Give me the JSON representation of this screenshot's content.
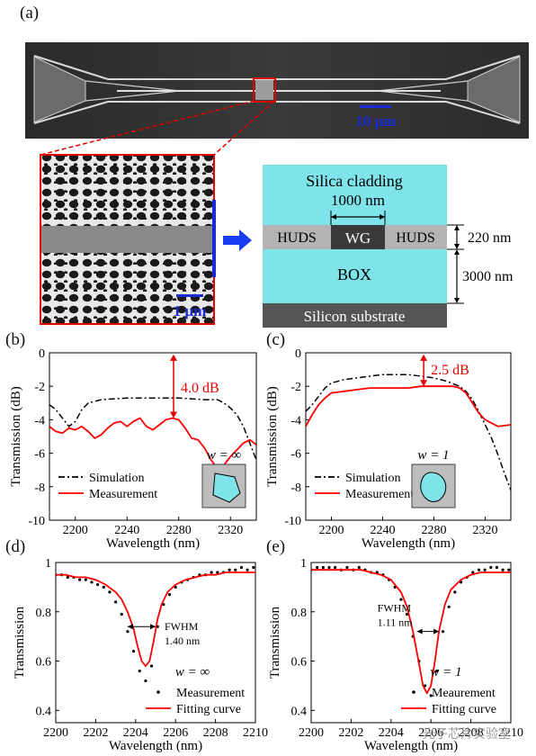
{
  "panels": {
    "a": "(a)",
    "b": "(b)",
    "c": "(c)",
    "d": "(d)",
    "e": "(e)"
  },
  "sem": {
    "scale_main": "10 µm",
    "scale_zoom": "1 µm"
  },
  "cross_section": {
    "cladding": "Silica cladding",
    "width": "1000 nm",
    "huds_left": "HUDS",
    "wg": "WG",
    "huds_right": "HUDS",
    "box": "BOX",
    "substrate": "Silicon substrate",
    "thickness_top": "220 nm",
    "thickness_box": "3000 nm",
    "colors": {
      "cladding": "#7fe3ea",
      "huds": "#b3b3b3",
      "wg": "#3a3a3a",
      "substrate": "#555555"
    }
  },
  "watermark": "光子芯片实验室",
  "chart_data": [
    {
      "id": "b",
      "type": "line",
      "xlabel": "Wavelength (nm)",
      "ylabel": "Transmission (dB)",
      "xlim": [
        2180,
        2340
      ],
      "ylim": [
        -10,
        0
      ],
      "xticks": [
        2200,
        2240,
        2280,
        2320
      ],
      "yticks": [
        0,
        -2,
        -4,
        -6,
        -8,
        -10
      ],
      "annotation": "4.0 dB",
      "annotation_x": 2276,
      "annotation_range": [
        -0.1,
        -3.9
      ],
      "inset_label": "w = ∞",
      "legend": [
        "Simulation",
        "Measurement"
      ],
      "series": [
        {
          "name": "Simulation",
          "style": "dashdot",
          "color": "#000000",
          "x": [
            2180,
            2185,
            2190,
            2195,
            2200,
            2205,
            2210,
            2220,
            2240,
            2260,
            2280,
            2300,
            2310,
            2315,
            2320,
            2325,
            2330,
            2335,
            2340
          ],
          "y": [
            -3.1,
            -3.4,
            -3.9,
            -4.4,
            -4.1,
            -3.4,
            -3.0,
            -2.8,
            -2.7,
            -2.7,
            -2.7,
            -2.8,
            -2.8,
            -3.0,
            -3.3,
            -3.7,
            -4.4,
            -5.4,
            -6.4
          ]
        },
        {
          "name": "Measurement",
          "style": "solid",
          "color": "#ff0000",
          "x": [
            2180,
            2185,
            2190,
            2195,
            2200,
            2205,
            2210,
            2215,
            2220,
            2225,
            2230,
            2235,
            2240,
            2245,
            2250,
            2255,
            2260,
            2265,
            2270,
            2275,
            2280,
            2285,
            2290,
            2295,
            2300,
            2305,
            2310,
            2315,
            2320,
            2325,
            2330,
            2335,
            2340
          ],
          "y": [
            -4.4,
            -4.7,
            -4.8,
            -4.5,
            -4.6,
            -4.4,
            -4.7,
            -5.1,
            -4.9,
            -4.5,
            -4.2,
            -4.1,
            -4.4,
            -4.1,
            -3.9,
            -4.4,
            -4.6,
            -4.3,
            -4.0,
            -3.9,
            -4.0,
            -4.5,
            -5.1,
            -5.2,
            -5.7,
            -6.4,
            -6.9,
            -6.7,
            -6.2,
            -5.8,
            -5.4,
            -5.2,
            -5.5
          ]
        }
      ]
    },
    {
      "id": "c",
      "type": "line",
      "xlabel": "Wavelength (nm)",
      "ylabel": "Transmission (dB)",
      "xlim": [
        2180,
        2340
      ],
      "ylim": [
        -10,
        0
      ],
      "xticks": [
        2200,
        2240,
        2280,
        2320
      ],
      "yticks": [
        0,
        -2,
        -4,
        -6,
        -8,
        -10
      ],
      "annotation": "2.5 dB",
      "annotation_x": 2272,
      "annotation_range": [
        -0.1,
        -2.0
      ],
      "inset_label": "w = 1",
      "legend": [
        "Simulation",
        "Measurement"
      ],
      "series": [
        {
          "name": "Simulation",
          "style": "dashdot",
          "color": "#000000",
          "x": [
            2180,
            2185,
            2190,
            2195,
            2200,
            2210,
            2220,
            2230,
            2240,
            2250,
            2260,
            2270,
            2280,
            2290,
            2300,
            2305,
            2310,
            2315,
            2320,
            2325,
            2330,
            2335,
            2340
          ],
          "y": [
            -3.5,
            -3.1,
            -2.6,
            -2.1,
            -1.8,
            -1.6,
            -1.5,
            -1.4,
            -1.3,
            -1.3,
            -1.3,
            -1.4,
            -1.5,
            -1.7,
            -2.0,
            -2.3,
            -2.8,
            -3.5,
            -4.3,
            -5.1,
            -6.1,
            -7.2,
            -8.2
          ]
        },
        {
          "name": "Measurement",
          "style": "solid",
          "color": "#ff0000",
          "x": [
            2180,
            2185,
            2190,
            2195,
            2200,
            2210,
            2220,
            2230,
            2240,
            2250,
            2260,
            2270,
            2280,
            2290,
            2295,
            2300,
            2305,
            2310,
            2315,
            2320,
            2330,
            2340
          ],
          "y": [
            -4.4,
            -3.7,
            -3.1,
            -2.7,
            -2.4,
            -2.3,
            -2.2,
            -2.1,
            -2.1,
            -2.1,
            -2.1,
            -2.0,
            -2.0,
            -2.0,
            -2.0,
            -2.1,
            -2.4,
            -3.0,
            -3.6,
            -4.0,
            -4.4,
            -4.3
          ]
        }
      ]
    },
    {
      "id": "d",
      "type": "scatter+line",
      "xlabel": "Wavelength (nm)",
      "ylabel": "Transmission",
      "xlim": [
        2200,
        2210
      ],
      "ylim": [
        0.35,
        1.0
      ],
      "xticks": [
        2200,
        2202,
        2204,
        2206,
        2208,
        2210
      ],
      "xtick_labels": [
        "2200",
        "2202",
        "2204",
        "2206",
        "2208",
        "2210"
      ],
      "yticks": [
        0.4,
        0.6,
        0.8,
        1.0
      ],
      "ytick_labels": [
        "0.4",
        "0.6",
        "0.8",
        "1"
      ],
      "fwhm_label": "FWHM",
      "fwhm_value": "1.40 nm",
      "fwhm_range": [
        2203.6,
        2205.0
      ],
      "fwhm_y": 0.74,
      "inset_label": "w = ∞",
      "legend": [
        "Measurement",
        "Fitting curve"
      ],
      "series": [
        {
          "name": "Measurement",
          "style": "dots",
          "color": "#000000",
          "x": [
            2200.0,
            2200.3,
            2200.6,
            2200.9,
            2201.2,
            2201.5,
            2201.8,
            2202.1,
            2202.4,
            2202.7,
            2203.0,
            2203.3,
            2203.6,
            2203.9,
            2204.2,
            2204.5,
            2204.8,
            2205.1,
            2205.4,
            2205.7,
            2206.0,
            2206.3,
            2206.6,
            2206.9,
            2207.2,
            2207.5,
            2207.8,
            2208.1,
            2208.4,
            2208.7,
            2209.0,
            2209.3,
            2209.6,
            2209.9
          ],
          "y": [
            0.95,
            0.95,
            0.94,
            0.94,
            0.93,
            0.93,
            0.92,
            0.91,
            0.9,
            0.88,
            0.84,
            0.79,
            0.72,
            0.64,
            0.56,
            0.52,
            0.58,
            0.74,
            0.83,
            0.87,
            0.9,
            0.92,
            0.93,
            0.94,
            0.95,
            0.95,
            0.96,
            0.96,
            0.96,
            0.97,
            0.97,
            0.98,
            0.97,
            0.98
          ]
        },
        {
          "name": "Fitting curve",
          "style": "solid",
          "color": "#ff0000",
          "x": [
            2200.0,
            2200.5,
            2201.0,
            2201.5,
            2202.0,
            2202.5,
            2203.0,
            2203.3,
            2203.6,
            2203.9,
            2204.1,
            2204.3,
            2204.5,
            2204.7,
            2204.9,
            2205.1,
            2205.3,
            2205.6,
            2206.0,
            2206.5,
            2207.0,
            2207.5,
            2208.0,
            2208.5,
            2209.0,
            2209.5,
            2210.0
          ],
          "y": [
            0.95,
            0.95,
            0.94,
            0.94,
            0.93,
            0.91,
            0.88,
            0.85,
            0.8,
            0.73,
            0.66,
            0.6,
            0.58,
            0.6,
            0.68,
            0.77,
            0.83,
            0.88,
            0.91,
            0.93,
            0.94,
            0.95,
            0.95,
            0.96,
            0.96,
            0.96,
            0.96
          ]
        }
      ]
    },
    {
      "id": "e",
      "type": "scatter+line",
      "xlabel": "Wavelength (nm)",
      "ylabel": "Transmission",
      "xlim": [
        2200,
        2210
      ],
      "ylim": [
        0.35,
        1.0
      ],
      "xticks": [
        2200,
        2202,
        2204,
        2206,
        2208,
        2210
      ],
      "xtick_labels": [
        "2200",
        "2202",
        "2204",
        "2206",
        "2208",
        "2210"
      ],
      "yticks": [
        0.4,
        0.6,
        0.8,
        1.0
      ],
      "ytick_labels": [
        "0.4",
        "0.6",
        "0.8",
        "1"
      ],
      "fwhm_label": "FWHM",
      "fwhm_value": "1.11 nm",
      "fwhm_range": [
        2205.3,
        2206.4
      ],
      "fwhm_y": 0.72,
      "inset_label": "w = 1",
      "legend": [
        "Meaurement",
        "Fitting curve"
      ],
      "series": [
        {
          "name": "Meaurement",
          "style": "dots",
          "color": "#000000",
          "x": [
            2200.0,
            2200.3,
            2200.6,
            2200.9,
            2201.2,
            2201.5,
            2201.8,
            2202.1,
            2202.4,
            2202.7,
            2203.0,
            2203.3,
            2203.6,
            2203.9,
            2204.2,
            2204.5,
            2204.8,
            2205.1,
            2205.4,
            2205.7,
            2206.0,
            2206.3,
            2206.6,
            2206.9,
            2207.2,
            2207.5,
            2207.8,
            2208.1,
            2208.4,
            2208.7,
            2209.0,
            2209.3,
            2209.6,
            2209.9
          ],
          "y": [
            0.97,
            0.98,
            0.98,
            0.98,
            0.98,
            0.97,
            0.98,
            0.97,
            0.98,
            0.97,
            0.96,
            0.96,
            0.95,
            0.93,
            0.9,
            0.85,
            0.79,
            0.7,
            0.6,
            0.5,
            0.46,
            0.56,
            0.72,
            0.82,
            0.88,
            0.92,
            0.94,
            0.96,
            0.97,
            0.97,
            0.98,
            0.98,
            0.97,
            0.97
          ]
        },
        {
          "name": "Fitting curve",
          "style": "solid",
          "color": "#ff0000",
          "x": [
            2200.0,
            2200.5,
            2201.0,
            2201.5,
            2202.0,
            2202.5,
            2203.0,
            2203.5,
            2204.0,
            2204.5,
            2204.8,
            2205.1,
            2205.4,
            2205.6,
            2205.8,
            2206.0,
            2206.2,
            2206.4,
            2206.7,
            2207.0,
            2207.5,
            2208.0,
            2208.5,
            2209.0,
            2209.5,
            2210.0
          ],
          "y": [
            0.97,
            0.97,
            0.97,
            0.97,
            0.97,
            0.97,
            0.96,
            0.95,
            0.93,
            0.88,
            0.82,
            0.72,
            0.59,
            0.5,
            0.47,
            0.5,
            0.6,
            0.72,
            0.83,
            0.89,
            0.93,
            0.95,
            0.96,
            0.96,
            0.96,
            0.96
          ]
        }
      ]
    }
  ]
}
